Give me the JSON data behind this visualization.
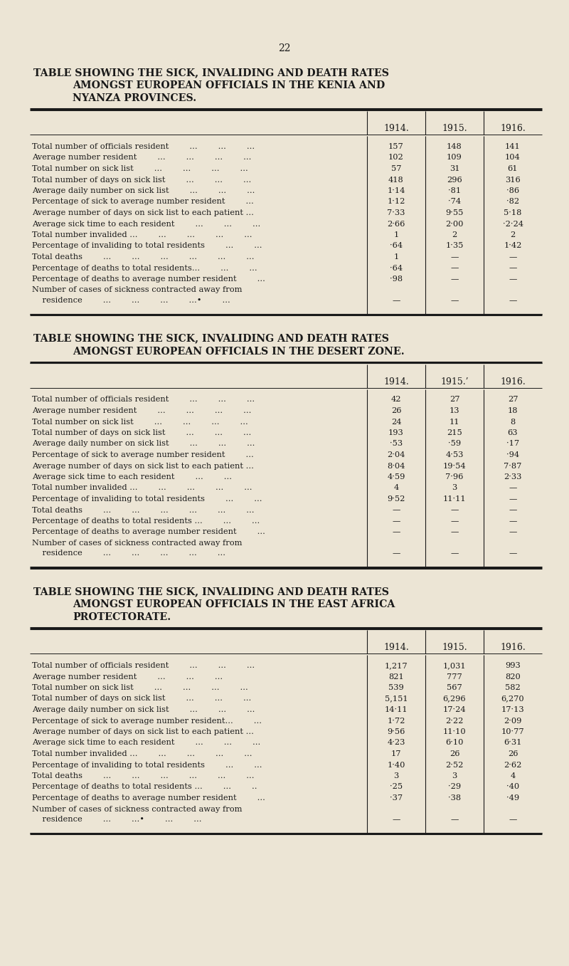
{
  "bg_color": "#ece5d5",
  "text_color": "#1a1a1a",
  "page_number": "22",
  "tables": [
    {
      "title_lines": [
        "TABLE SHOWING THE SICK, INVALIDING AND DEATH RATES",
        "AMONGST EUROPEAN OFFICIALS IN THE KENIA AND",
        "NYANZA PROVINCES."
      ],
      "col_headers": [
        "1914.",
        "1915.",
        "1916."
      ],
      "data_rows": [
        {
          "label": "Total number of officials resident        ...        ...        ...",
          "v1914": "157",
          "v1915": "148",
          "v1916": "141"
        },
        {
          "label": "Average number resident        ...        ...        ...        ...",
          "v1914": "102",
          "v1915": "109",
          "v1916": "104"
        },
        {
          "label": "Total number on sick list        ...        ...        ...        ...",
          "v1914": "57",
          "v1915": "31",
          "v1916": "61"
        },
        {
          "label": "Total number of days on sick list        ...        ...        ...",
          "v1914": "418",
          "v1915": "296",
          "v1916": "316"
        },
        {
          "label": "Average daily number on sick list        ...        ...        ...",
          "v1914": "1·14",
          "v1915": "·81",
          "v1916": "·86"
        },
        {
          "label": "Percentage of sick to average number resident        ...",
          "v1914": "1·12",
          "v1915": "·74",
          "v1916": "·82"
        },
        {
          "label": "Average number of days on sick list to each patient ...",
          "v1914": "7·33",
          "v1915": "9·55",
          "v1916": "5·18"
        },
        {
          "label": "Average sick time to each resident        ...        ...        ...",
          "v1914": "2·66",
          "v1915": "2·00",
          "v1916": "·2·24"
        },
        {
          "label": "Total number invalided ...        ...        ...        ...        ...",
          "v1914": "1",
          "v1915": "2",
          "v1916": "2"
        },
        {
          "label": "Percentage of invaliding to total residents        ...        ...",
          "v1914": "·64",
          "v1915": "1·35",
          "v1916": "1·42"
        },
        {
          "label": "Total deaths        ...        ...        ...        ...        ...        ...",
          "v1914": "1",
          "v1915": "—",
          "v1916": "—"
        },
        {
          "label": "Percentage of deaths to total residents...        ...        ...",
          "v1914": "·64",
          "v1915": "—",
          "v1916": "—"
        },
        {
          "label": "Percentage of deaths to average number resident        ...",
          "v1914": "·98",
          "v1915": "—",
          "v1916": "—"
        },
        {
          "label": "Number of cases of sickness contracted away from",
          "v1914": "",
          "v1915": "",
          "v1916": "",
          "indent": "    residence        ...        ...        ...        ...•        ...",
          "iv1914": "—",
          "iv1915": "—",
          "iv1916": "—"
        }
      ]
    },
    {
      "title_lines": [
        "TABLE SHOWING THE SICK, INVALIDING AND DEATH RATES",
        "AMONGST EUROPEAN OFFICIALS IN THE DESERT ZONE."
      ],
      "col_headers": [
        "1914.",
        "1915.’",
        "1916."
      ],
      "data_rows": [
        {
          "label": "Total number of officials resident        ...        ...        ...",
          "v1914": "42",
          "v1915": "27",
          "v1916": "27"
        },
        {
          "label": "Average number resident        ...        ...        ...        ...",
          "v1914": "26",
          "v1915": "13",
          "v1916": "18"
        },
        {
          "label": "Total number on sick list        ...        ...        ...        ...",
          "v1914": "24",
          "v1915": "11",
          "v1916": "8"
        },
        {
          "label": "Total number of days on sick list        ...        ...        ...",
          "v1914": "193",
          "v1915": "215",
          "v1916": "63"
        },
        {
          "label": "Average daily number on sick list        ...        ...        ...",
          "v1914": "·53",
          "v1915": "·59",
          "v1916": "·17"
        },
        {
          "label": "Percentage of sick to average number resident        ...",
          "v1914": "2·04",
          "v1915": "4·53",
          "v1916": "·94"
        },
        {
          "label": "Average number of days on sick list to each patient ...",
          "v1914": "8·04",
          "v1915": "19·54",
          "v1916": "7·87"
        },
        {
          "label": "Average sick time to each resident        ...        ...",
          "v1914": "4·59",
          "v1915": "7·96",
          "v1916": "2·33"
        },
        {
          "label": "Total number invalided ...        ...        ...        ...        ...",
          "v1914": "4",
          "v1915": "3",
          "v1916": "—"
        },
        {
          "label": "Percentage of invaliding to total residents        ...        ...",
          "v1914": "9·52",
          "v1915": "11·11",
          "v1916": "—"
        },
        {
          "label": "Total deaths        ...        ...        ...        ...        ...        ...",
          "v1914": "—",
          "v1915": "—",
          "v1916": "—"
        },
        {
          "label": "Percentage of deaths to total residents ...        ...        ...",
          "v1914": "—",
          "v1915": "—",
          "v1916": "—"
        },
        {
          "label": "Percentage of deaths to average number resident        ...",
          "v1914": "—",
          "v1915": "—",
          "v1916": "—"
        },
        {
          "label": "Number of cases of sickness contracted away from",
          "v1914": "",
          "v1915": "",
          "v1916": "",
          "indent": "    residence        ...        ...        ...        ...        ...",
          "iv1914": "—",
          "iv1915": "—",
          "iv1916": "—"
        }
      ]
    },
    {
      "title_lines": [
        "TABLE SHOWING THE SICK, INVALIDING AND DEATH RATES",
        "AMONGST EUROPEAN OFFICIALS IN THE EAST AFRICA",
        "PROTECTORATE."
      ],
      "col_headers": [
        "1914.",
        "1915.",
        "1916."
      ],
      "data_rows": [
        {
          "label": "Total number of officials resident        ...        ...        ...",
          "v1914": "1,217",
          "v1915": "1,031",
          "v1916": "993"
        },
        {
          "label": "Average number resident        ...        ...        ...",
          "v1914": "821",
          "v1915": "777",
          "v1916": "820"
        },
        {
          "label": "Total number on sick list        ...        ...        ...        ...",
          "v1914": "539",
          "v1915": "567",
          "v1916": "582"
        },
        {
          "label": "Total number of days on sick list        ...        ...        ...",
          "v1914": "5,151",
          "v1915": "6,296",
          "v1916": "6,270"
        },
        {
          "label": "Average daily number on sick list        ...        ...        ...",
          "v1914": "14·11",
          "v1915": "17·24",
          "v1916": "17·13"
        },
        {
          "label": "Percentage of sick to average number resident...        ...",
          "v1914": "1·72",
          "v1915": "2·22",
          "v1916": "2·09"
        },
        {
          "label": "Average number of days on sick list to each patient ...",
          "v1914": "9·56",
          "v1915": "11·10",
          "v1916": "10·77"
        },
        {
          "label": "Average sick time to each resident        ...        ...        ...",
          "v1914": "4·23",
          "v1915": "6·10",
          "v1916": "6·31"
        },
        {
          "label": "Total number invalided ...        ...        ...        ...        ...",
          "v1914": "17",
          "v1915": "26",
          "v1916": "26"
        },
        {
          "label": "Percentage of invaliding to total residents        ...        ...",
          "v1914": "1·40",
          "v1915": "2·52",
          "v1916": "2·62"
        },
        {
          "label": "Total deaths        ...        ...        ...        ...        ...        ...",
          "v1914": "3",
          "v1915": "3",
          "v1916": "4"
        },
        {
          "label": "Percentage of deaths to total residents ...        ...        ..",
          "v1914": "·25",
          "v1915": "·29",
          "v1916": "·40"
        },
        {
          "label": "Percentage of deaths to average number resident        ...",
          "v1914": "·37",
          "v1915": "·38",
          "v1916": "·49"
        },
        {
          "label": "Number of cases of sickness contracted away from",
          "v1914": "",
          "v1915": "",
          "v1916": "",
          "indent": "    residence        ...        ...•        ...        ...",
          "iv1914": "—",
          "iv1915": "—",
          "iv1916": "—"
        }
      ]
    }
  ]
}
